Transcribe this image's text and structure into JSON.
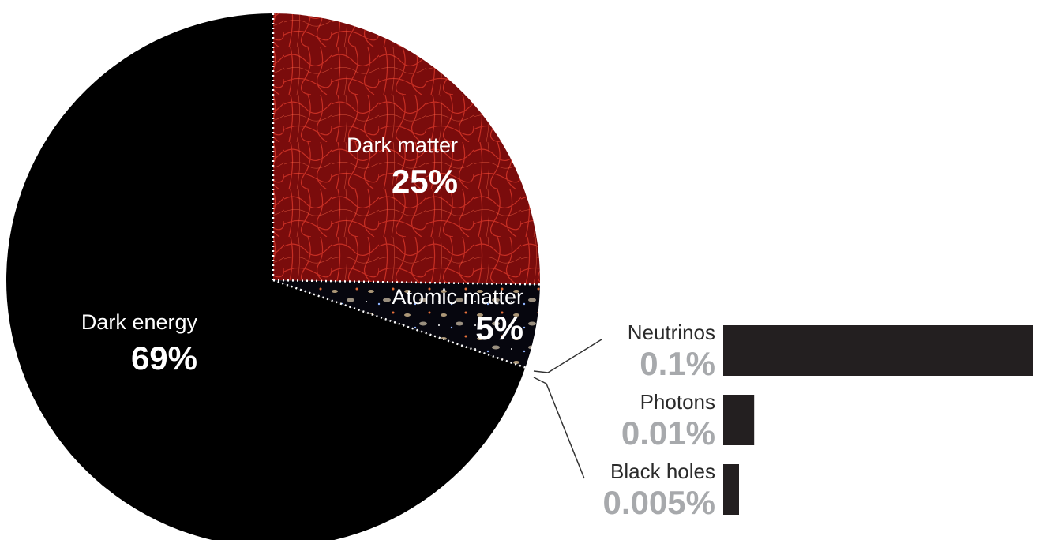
{
  "chart_data": [
    {
      "type": "pie",
      "title": "",
      "slices": [
        {
          "label": "Dark energy",
          "value_label": "69%",
          "value": 69,
          "color": "#000000"
        },
        {
          "label": "Dark matter",
          "value_label": "25%",
          "value": 25,
          "color": "#8b0f0f"
        },
        {
          "label": "Atomic matter",
          "value_label": "5%",
          "value": 5,
          "color": "#0a0a14"
        }
      ]
    },
    {
      "type": "bar",
      "orientation": "horizontal",
      "title": "",
      "categories": [
        "Neutrinos",
        "Photons",
        "Black holes"
      ],
      "value_labels": [
        "0.1%",
        "0.01%",
        "0.005%"
      ],
      "values": [
        0.1,
        0.01,
        0.005
      ],
      "bar_color": "#231f20",
      "value_label_color": "#a7a9ac"
    }
  ]
}
